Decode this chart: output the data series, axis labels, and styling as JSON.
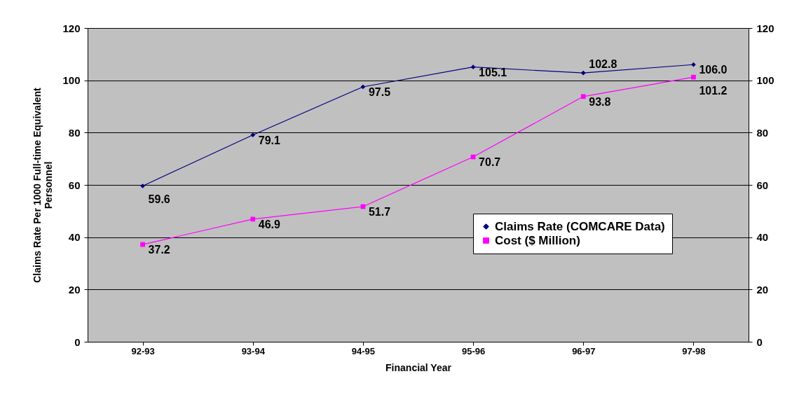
{
  "chart_data": {
    "type": "line",
    "xlabel": "Financial Year",
    "ylabel": "Claims Rate Per 1000 Full-time Equivalent Personnel",
    "categories": [
      "92-93",
      "93-94",
      "94-95",
      "95-96",
      "96-97",
      "97-98"
    ],
    "series": [
      {
        "name": "Claims Rate (COMCARE Data)",
        "color": "#000080",
        "marker": "diamond",
        "values": [
          59.6,
          79.1,
          97.5,
          105.1,
          102.8,
          106.0
        ],
        "value_labels": [
          "59.6",
          "79.1",
          "97.5",
          "105.1",
          "102.8",
          "106.0"
        ]
      },
      {
        "name": "Cost ($ Million)",
        "color": "#ff00ff",
        "marker": "square",
        "axis": "y2",
        "values": [
          37.2,
          46.9,
          51.7,
          70.7,
          93.8,
          101.2
        ],
        "value_labels": [
          "37.2",
          "46.9",
          "51.7",
          "70.7",
          "93.8",
          "101.2"
        ]
      }
    ],
    "ylim": [
      0,
      120
    ],
    "yticks": [
      0,
      20,
      40,
      60,
      80,
      100,
      120
    ],
    "y2lim": [
      0,
      120
    ],
    "y2ticks": [
      0,
      20,
      40,
      60,
      80,
      100,
      120
    ],
    "grid": "y",
    "legend": "right"
  }
}
